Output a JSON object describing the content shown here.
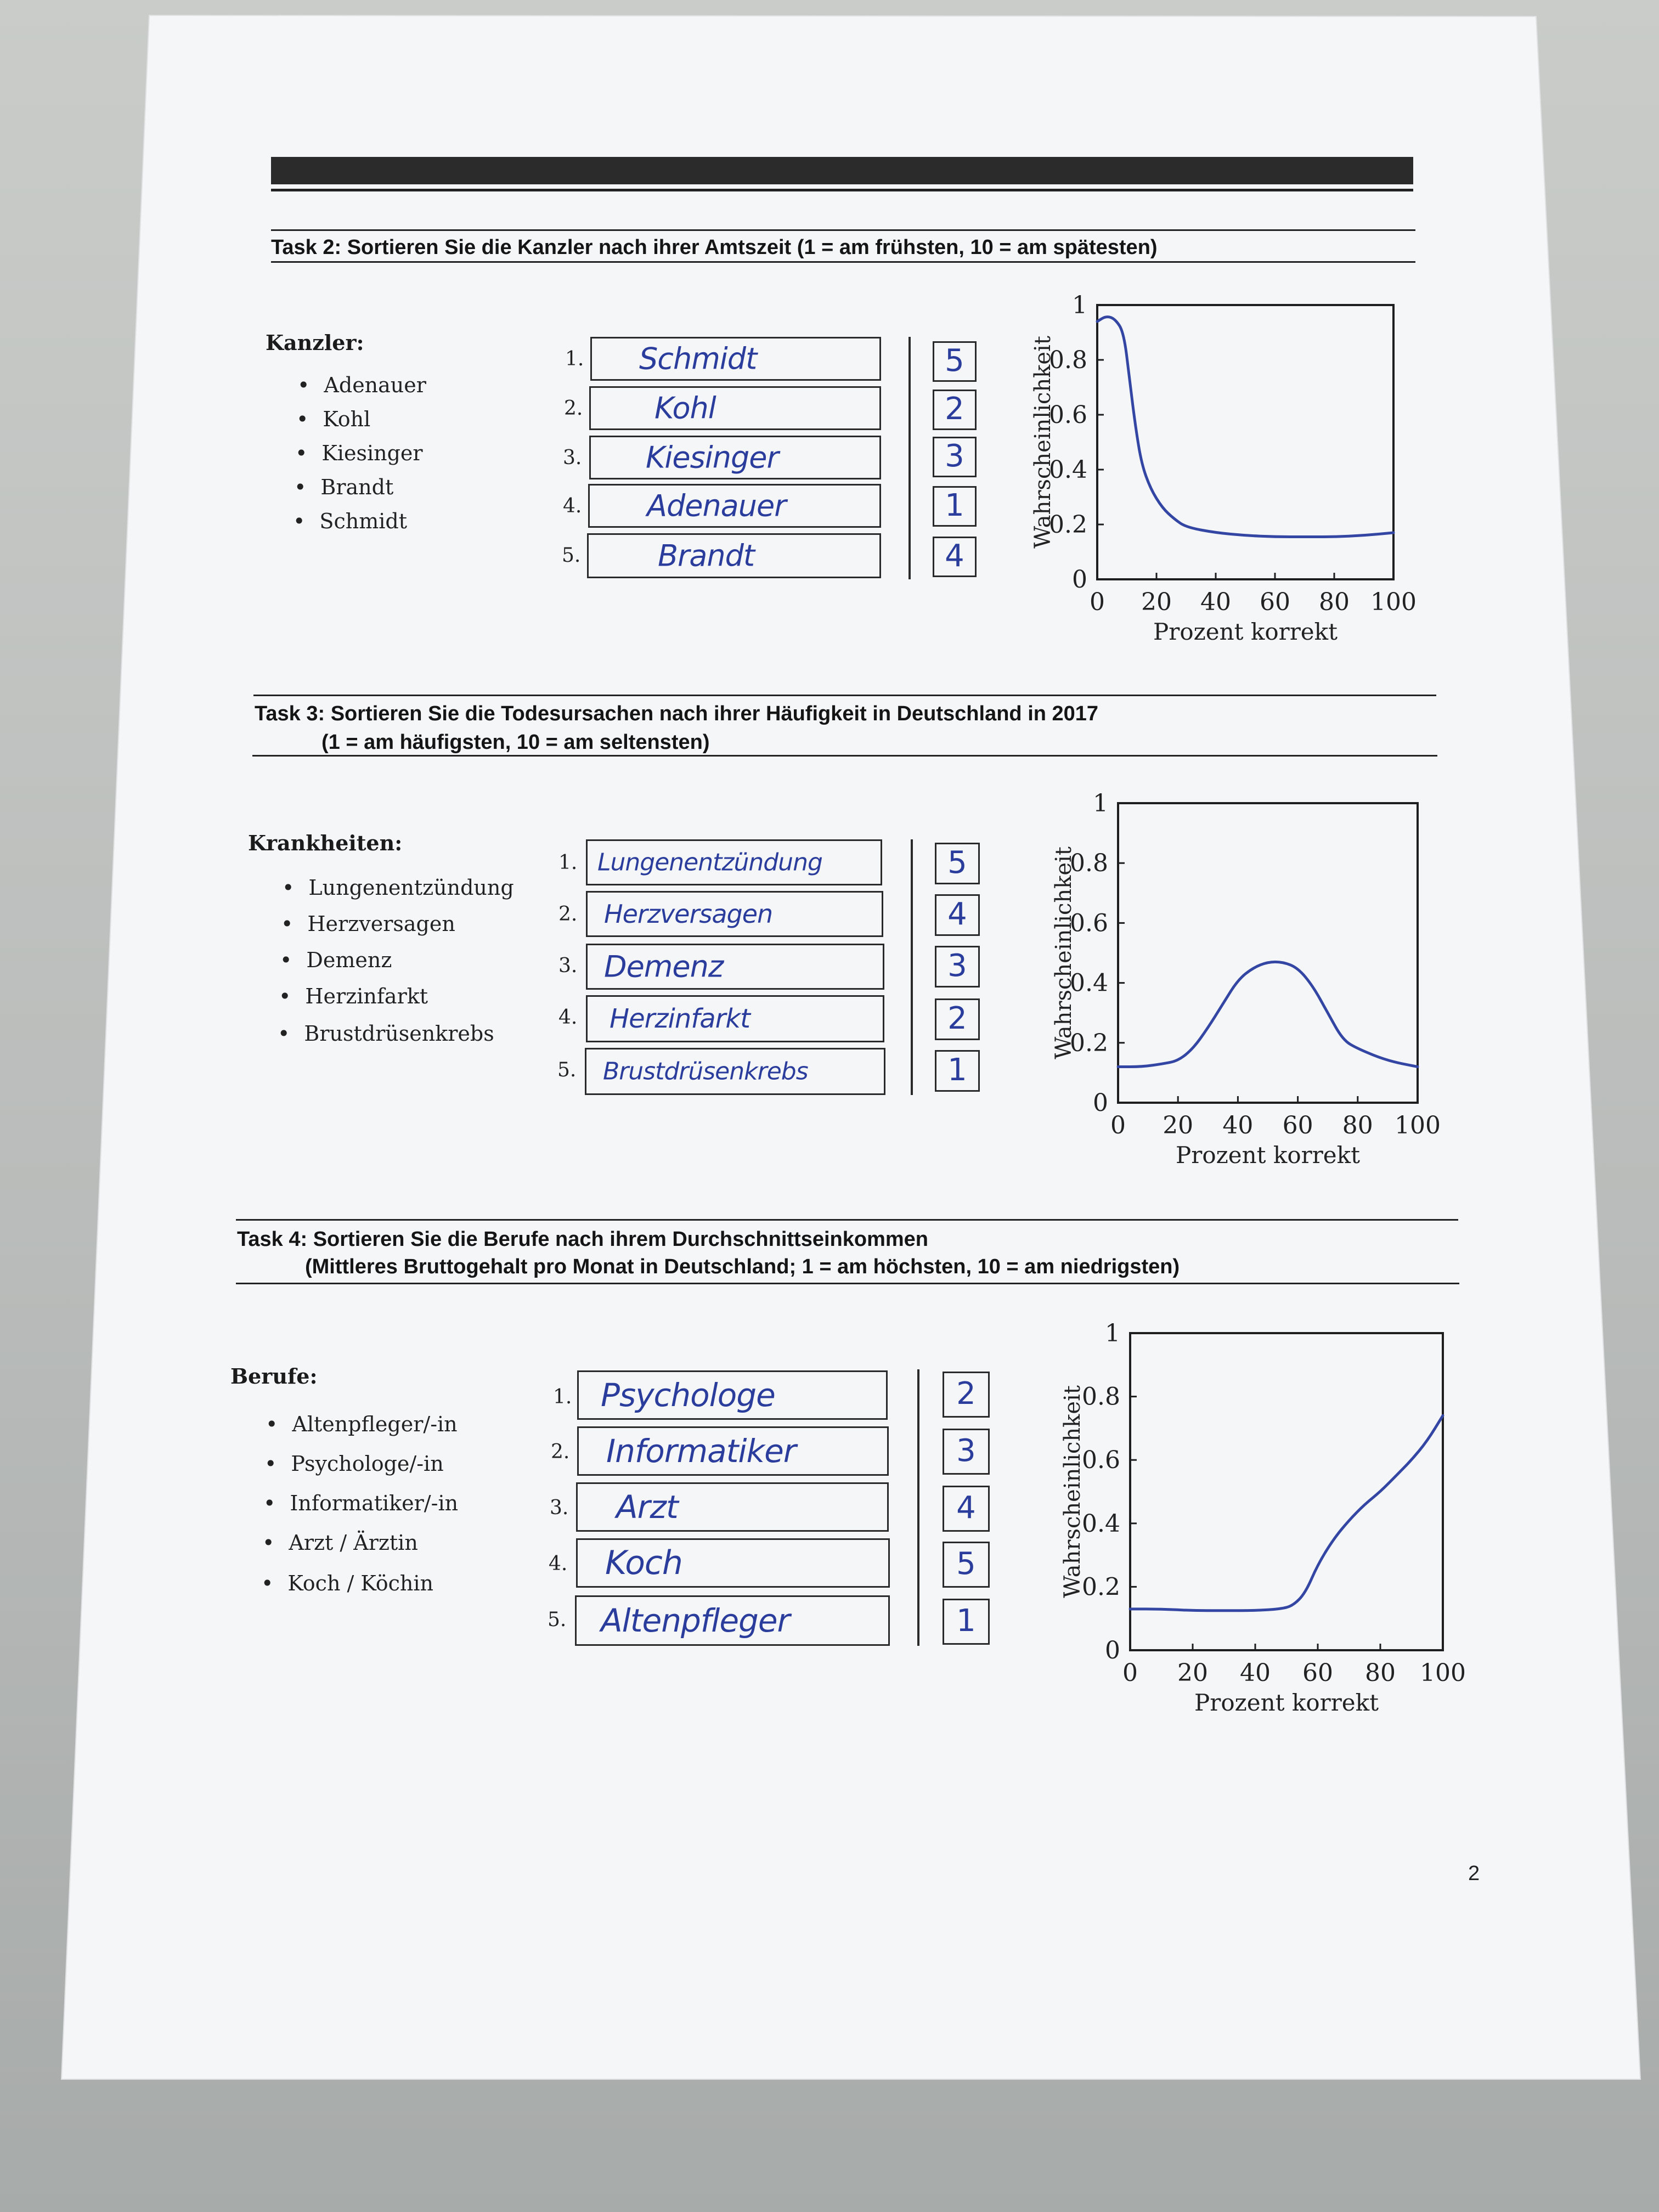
{
  "page": {
    "number": "2"
  },
  "tasks": [
    {
      "title": "Task 2:  Sortieren Sie die Kanzler nach ihrer Amtszeit (1 = am frühsten, 10 = am spätesten)",
      "title_line2": "",
      "list_heading": "Kanzler:",
      "items": [
        "Adenauer",
        "Kohl",
        "Kiesinger",
        "Brandt",
        "Schmidt"
      ],
      "rank_labels": [
        "1.",
        "2.",
        "3.",
        "4.",
        "5."
      ],
      "answers": [
        "Schmidt",
        "Kohl",
        "Kiesinger",
        "Adenauer",
        "Brandt"
      ],
      "scores": [
        "5",
        "2",
        "3",
        "1",
        "4"
      ]
    },
    {
      "title": "Task 3:  Sortieren Sie die Todesursachen nach ihrer Häufigkeit in Deutschland in 2017",
      "title_line2": "(1 = am häufigsten, 10 = am seltensten)",
      "list_heading": "Krankheiten:",
      "items": [
        "Lungenentzündung",
        "Herzversagen",
        "Demenz",
        "Herzinfarkt",
        "Brustdrüsenkrebs"
      ],
      "rank_labels": [
        "1.",
        "2.",
        "3.",
        "4.",
        "5."
      ],
      "answers": [
        "Lungenentzündung",
        "Herzversagen",
        "Demenz",
        "Herzinfarkt",
        "Brustdrüsenkrebs"
      ],
      "scores": [
        "5",
        "4",
        "3",
        "2",
        "1"
      ]
    },
    {
      "title": "Task 4:  Sortieren Sie die Berufe nach ihrem Durchschnittseinkommen",
      "title_line2": "(Mittleres Bruttogehalt pro Monat in Deutschland; 1 = am höchsten, 10 = am niedrigsten)",
      "list_heading": "Berufe:",
      "items": [
        "Altenpfleger/-in",
        "Psychologe/-in",
        "Informatiker/-in",
        "Arzt / Ärztin",
        "Koch / Köchin"
      ],
      "rank_labels": [
        "1.",
        "2.",
        "3.",
        "4.",
        "5."
      ],
      "answers": [
        "Psychologe",
        "Informatiker",
        "Arzt",
        "Koch",
        "Altenpfleger"
      ],
      "scores": [
        "2",
        "3",
        "4",
        "5",
        "1"
      ]
    }
  ],
  "chart_data": [
    {
      "type": "line",
      "xlabel": "Prozent korrekt",
      "ylabel": "Wahrscheinlichkeit",
      "xlim": [
        0,
        100
      ],
      "ylim": [
        0,
        1
      ],
      "xticks": [
        "0",
        "20",
        "40",
        "60",
        "80",
        "100"
      ],
      "yticks": [
        "0",
        "0.2",
        "0.4",
        "0.6",
        "0.8",
        "1"
      ],
      "grid": false,
      "line_color": "#3346a3",
      "series": [
        {
          "x": [
            0,
            3,
            6,
            9,
            11,
            13,
            15,
            18,
            22,
            26,
            30,
            40,
            50,
            60,
            70,
            80,
            90,
            100
          ],
          "y": [
            0.94,
            0.96,
            0.95,
            0.9,
            0.72,
            0.55,
            0.42,
            0.33,
            0.26,
            0.22,
            0.19,
            0.17,
            0.16,
            0.155,
            0.155,
            0.155,
            0.16,
            0.17
          ]
        }
      ]
    },
    {
      "type": "line",
      "xlabel": "Prozent korrekt",
      "ylabel": "Wahrscheinlichkeit",
      "xlim": [
        0,
        100
      ],
      "ylim": [
        0,
        1
      ],
      "xticks": [
        "0",
        "20",
        "40",
        "60",
        "80",
        "100"
      ],
      "yticks": [
        "0",
        "0.2",
        "0.4",
        "0.6",
        "0.8",
        "1"
      ],
      "grid": false,
      "line_color": "#3346a3",
      "series": [
        {
          "x": [
            0,
            8,
            15,
            20,
            25,
            30,
            35,
            40,
            45,
            50,
            55,
            60,
            65,
            70,
            75,
            80,
            90,
            100
          ],
          "y": [
            0.12,
            0.12,
            0.13,
            0.14,
            0.18,
            0.25,
            0.33,
            0.41,
            0.45,
            0.47,
            0.47,
            0.45,
            0.39,
            0.3,
            0.21,
            0.18,
            0.14,
            0.12
          ]
        }
      ]
    },
    {
      "type": "line",
      "xlabel": "Prozent korrekt",
      "ylabel": "Wahrscheinlichkeit",
      "xlim": [
        0,
        100
      ],
      "ylim": [
        0,
        1
      ],
      "xticks": [
        "0",
        "20",
        "40",
        "60",
        "80",
        "100"
      ],
      "yticks": [
        "0",
        "0.2",
        "0.4",
        "0.6",
        "0.8",
        "1"
      ],
      "grid": false,
      "line_color": "#3346a3",
      "series": [
        {
          "x": [
            0,
            10,
            20,
            30,
            40,
            48,
            52,
            56,
            60,
            65,
            70,
            75,
            80,
            85,
            90,
            95,
            100
          ],
          "y": [
            0.13,
            0.13,
            0.125,
            0.125,
            0.125,
            0.13,
            0.14,
            0.18,
            0.27,
            0.35,
            0.41,
            0.46,
            0.5,
            0.55,
            0.6,
            0.66,
            0.74
          ]
        }
      ]
    }
  ]
}
